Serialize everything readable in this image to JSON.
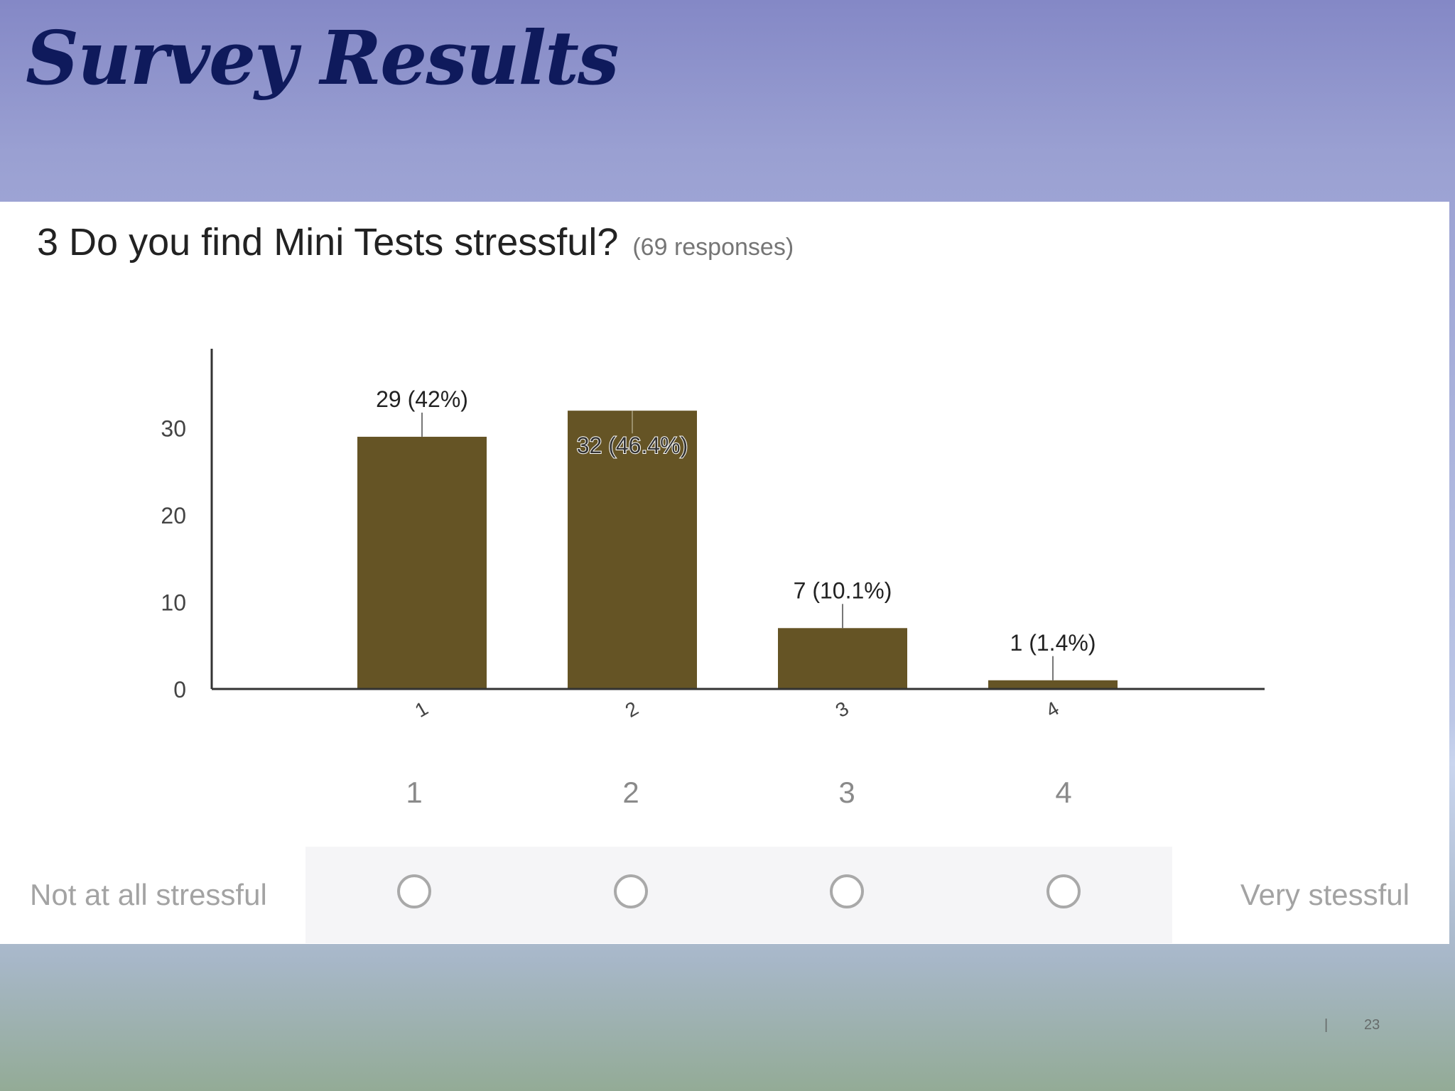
{
  "slide": {
    "title": "Survey Results",
    "page_number": "23",
    "footer_separator": "|"
  },
  "question": {
    "text": "3 Do you find Mini Tests stressful?",
    "responses": "(69 responses)"
  },
  "chart_data": {
    "type": "bar",
    "categories": [
      "1",
      "2",
      "3",
      "4"
    ],
    "values": [
      29,
      32,
      7,
      1
    ],
    "data_labels": [
      "29 (42%)",
      "32 (46.4%)",
      "7 (10.1%)",
      "1 (1.4%)"
    ],
    "yticks": [
      "0",
      "10",
      "20",
      "30"
    ],
    "ylim": [
      0,
      36
    ],
    "grid": false,
    "bar_color": "#655425"
  },
  "scale": {
    "options": [
      "1",
      "2",
      "3",
      "4"
    ],
    "low_label": "Not at all stressful",
    "high_label": "Very stessful"
  }
}
